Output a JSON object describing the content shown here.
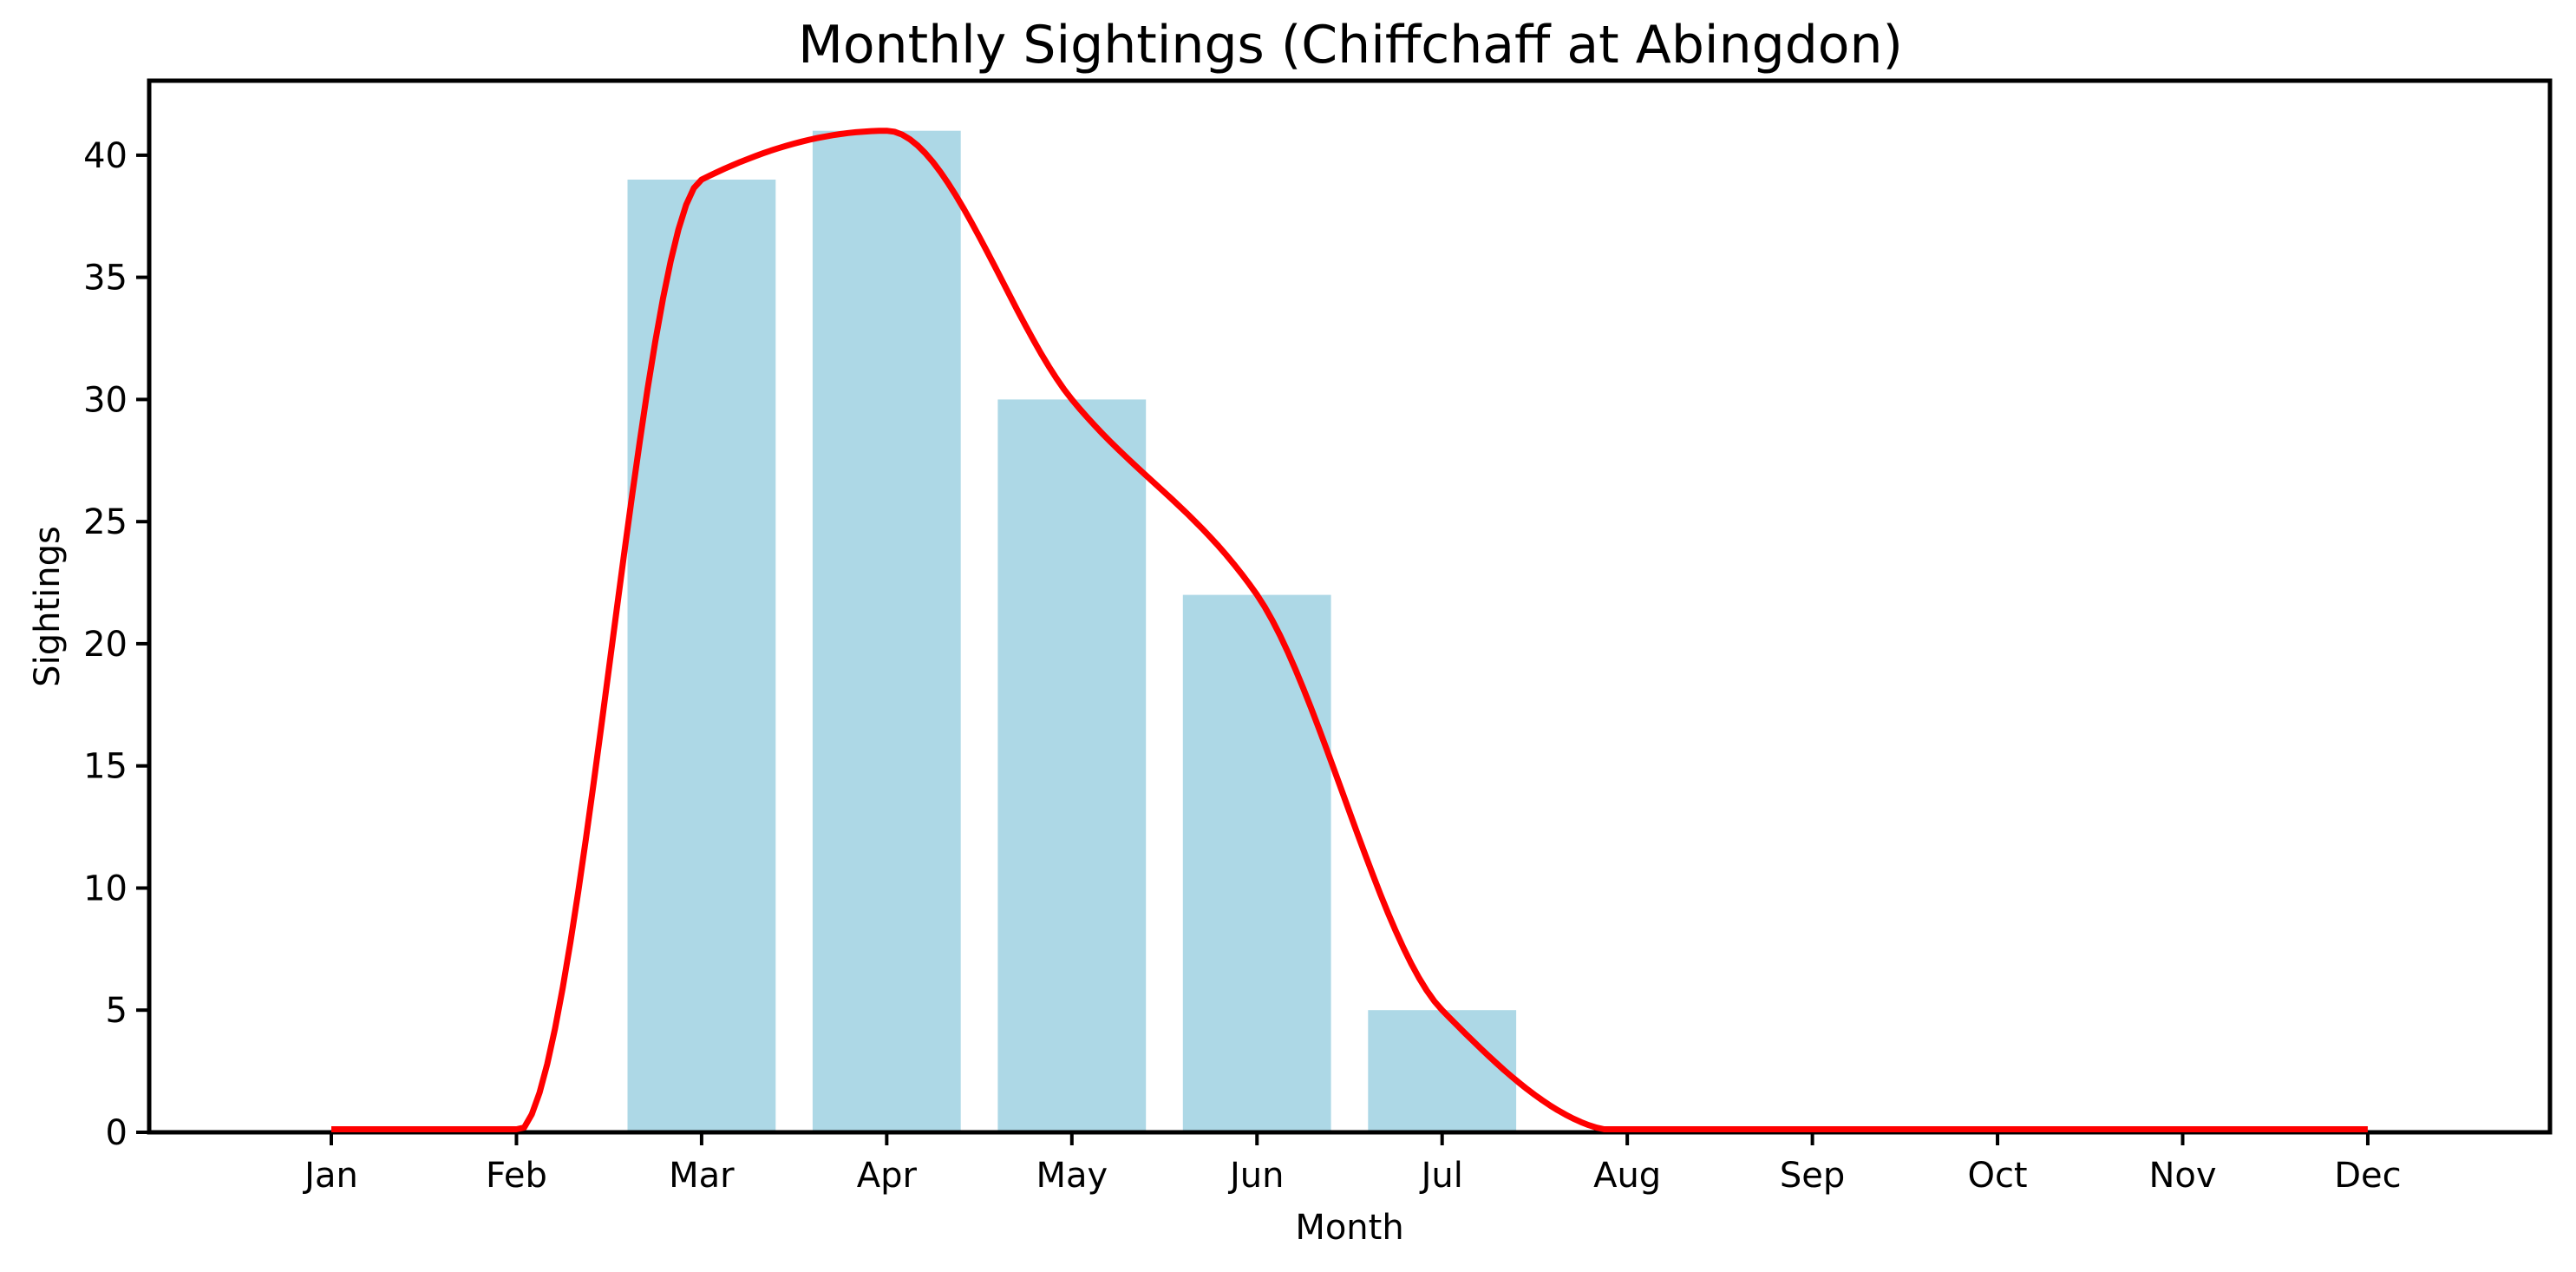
{
  "chart_data": {
    "type": "bar",
    "title": "Monthly Sightings (Chiffchaff at Abingdon)",
    "xlabel": "Month",
    "ylabel": "Sightings",
    "categories": [
      "Jan",
      "Feb",
      "Mar",
      "Apr",
      "May",
      "Jun",
      "Jul",
      "Aug",
      "Sep",
      "Oct",
      "Nov",
      "Dec"
    ],
    "series": [
      {
        "name": "monthly-sightings-bars",
        "type": "bar",
        "color": "#ADD8E6",
        "values": [
          0,
          0,
          39,
          41,
          30,
          22,
          5,
          0,
          0,
          0,
          0,
          0
        ]
      },
      {
        "name": "smoothed-trend-line",
        "type": "line",
        "color": "#FF0000",
        "interpolation": "monotone-cubic",
        "values": [
          0,
          0,
          39,
          41,
          30,
          22,
          5,
          0,
          0,
          0,
          0,
          0
        ]
      }
    ],
    "yticks": [
      0,
      5,
      10,
      15,
      20,
      25,
      30,
      35,
      40
    ],
    "ylim": [
      0,
      43.05
    ],
    "bar_width_fraction": 0.8,
    "grid": false,
    "legend": false,
    "background": "#FFFFFF",
    "axis_color": "#000000",
    "text_color": "#000000"
  }
}
